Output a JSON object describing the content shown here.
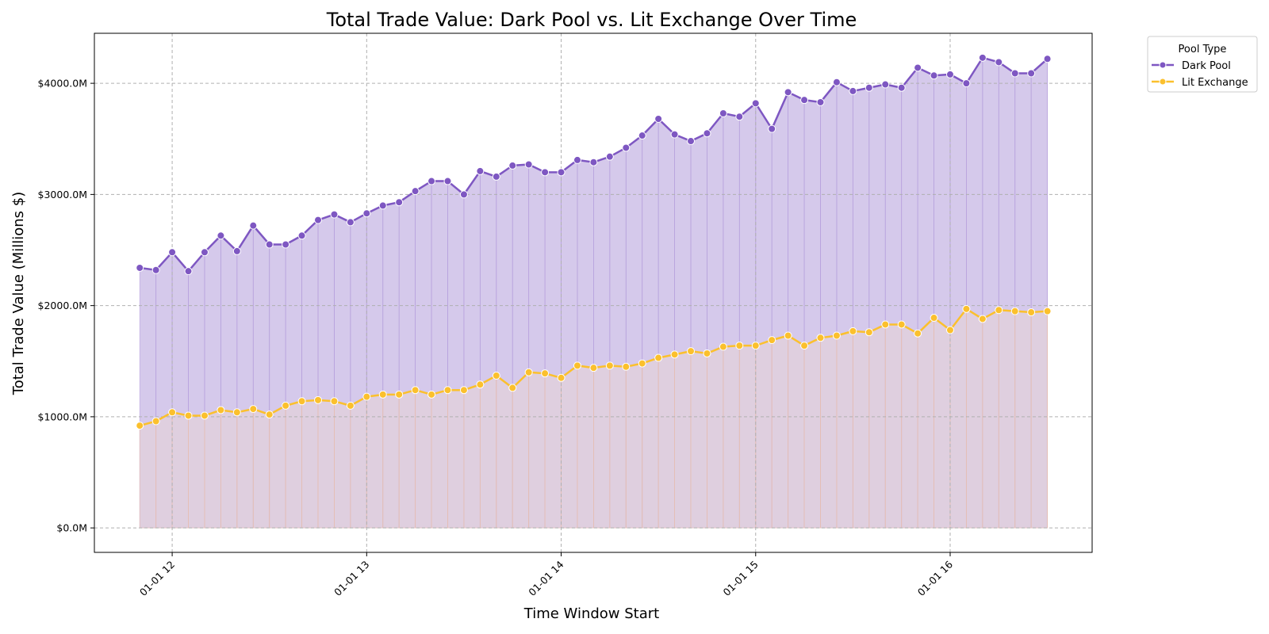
{
  "chart_data": {
    "type": "line",
    "title": "Total Trade Value: Dark Pool vs. Lit Exchange Over Time",
    "xlabel": "Time Window Start",
    "ylabel": "Total Trade Value (Millions $)",
    "x_start": "2024-01-01T11:50",
    "x_step_minutes": 5,
    "xlim_hours": [
      11.6,
      16.73
    ],
    "ylim": [
      -220,
      4450
    ],
    "yticks": [
      0,
      1000,
      2000,
      3000,
      4000
    ],
    "ytick_labels": [
      "$0.0M",
      "$1000.0M",
      "$2000.0M",
      "$3000.0M",
      "$4000.0M"
    ],
    "xticks_hours": [
      12,
      13,
      14,
      15,
      16
    ],
    "xtick_labels": [
      "01-01 12",
      "01-01 13",
      "01-01 14",
      "01-01 15",
      "01-01 16"
    ],
    "grid": true,
    "legend": {
      "title": "Pool Type",
      "placement": "top-right outside"
    },
    "series": [
      {
        "name": "Dark Pool",
        "color": "#7e57c2",
        "values": [
          2340,
          2320,
          2480,
          2310,
          2480,
          2630,
          2490,
          2720,
          2550,
          2550,
          2630,
          2770,
          2820,
          2750,
          2830,
          2900,
          2930,
          3030,
          3120,
          3120,
          3000,
          3210,
          3160,
          3260,
          3270,
          3200,
          3200,
          3310,
          3290,
          3340,
          3420,
          3530,
          3680,
          3540,
          3480,
          3550,
          3730,
          3700,
          3820,
          3590,
          3920,
          3850,
          3830,
          4010,
          3930,
          3960,
          3990,
          3960,
          4140,
          4070,
          4080,
          4000,
          4230,
          4190,
          4090,
          4090,
          4220
        ]
      },
      {
        "name": "Lit Exchange",
        "color": "#fbc02d",
        "values": [
          920,
          960,
          1040,
          1010,
          1010,
          1060,
          1040,
          1070,
          1020,
          1100,
          1140,
          1150,
          1140,
          1100,
          1180,
          1200,
          1200,
          1240,
          1200,
          1240,
          1240,
          1290,
          1370,
          1260,
          1400,
          1390,
          1350,
          1460,
          1440,
          1460,
          1450,
          1480,
          1530,
          1560,
          1590,
          1570,
          1630,
          1640,
          1640,
          1690,
          1730,
          1640,
          1710,
          1730,
          1770,
          1760,
          1830,
          1830,
          1750,
          1890,
          1780,
          1970,
          1880,
          1960,
          1950,
          1940,
          1950
        ]
      }
    ]
  }
}
